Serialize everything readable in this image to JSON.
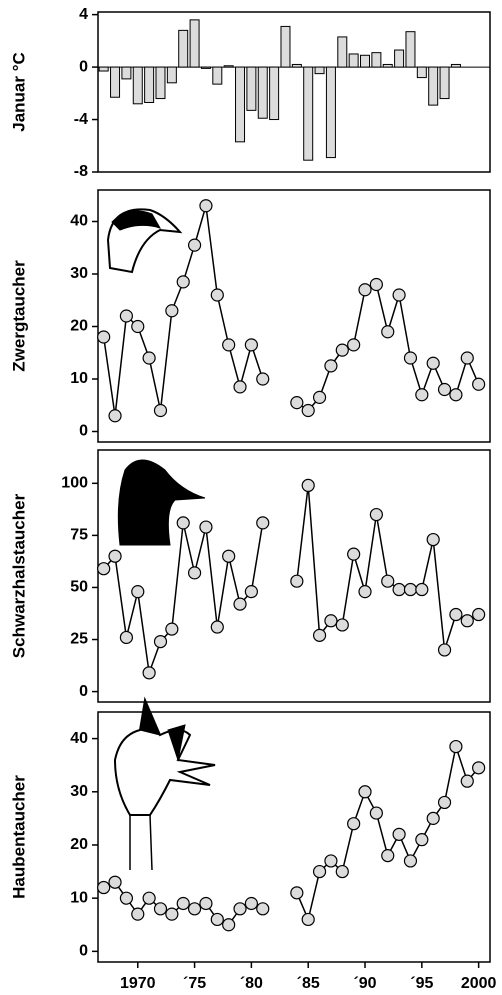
{
  "chart_data": [
    {
      "type": "bar",
      "y_label": "Januar °C",
      "x": [
        1967,
        1968,
        1969,
        1970,
        1971,
        1972,
        1973,
        1974,
        1975,
        1976,
        1977,
        1978,
        1979,
        1980,
        1981,
        1982,
        1983,
        1984,
        1985,
        1986,
        1987,
        1988,
        1989,
        1990,
        1991,
        1992,
        1993,
        1994,
        1995,
        1996,
        1997,
        1998
      ],
      "values": [
        -0.3,
        -2.3,
        -0.9,
        -2.8,
        -2.7,
        -2.4,
        -1.2,
        2.8,
        3.6,
        -0.1,
        -1.3,
        0.1,
        -5.7,
        -3.3,
        -3.9,
        -4.0,
        3.1,
        0.2,
        -7.1,
        -0.5,
        -6.9,
        2.3,
        1.0,
        0.9,
        1.1,
        0.2,
        1.3,
        2.7,
        -0.8,
        -2.9,
        -2.4,
        0.2
      ],
      "color": "#dcdcdc",
      "xlim": [
        1966.5,
        2001
      ],
      "ylim": [
        -8,
        4.2
      ],
      "yticks": [
        -8,
        -4,
        0,
        4
      ]
    },
    {
      "type": "line",
      "y_label": "Zwergtaucher",
      "x": [
        1967,
        1968,
        1969,
        1970,
        1971,
        1972,
        1973,
        1974,
        1975,
        1976,
        1977,
        1978,
        1979,
        1980,
        1981,
        1982,
        1983,
        1984,
        1985,
        1986,
        1987,
        1988,
        1989,
        1990,
        1991,
        1992,
        1993,
        1994,
        1995,
        1996,
        1997,
        1998,
        1999,
        2000
      ],
      "values": [
        18,
        3,
        22,
        20,
        14,
        4,
        23,
        28.5,
        35.5,
        43,
        26,
        16.5,
        8.5,
        16.5,
        10,
        null,
        null,
        5.5,
        4,
        6.5,
        12.5,
        15.5,
        16.5,
        27,
        28,
        19,
        26,
        14,
        7,
        13,
        8,
        7,
        14,
        9
      ],
      "color": "#dcdcdc",
      "xlim": [
        1966.5,
        2001
      ],
      "ylim": [
        -2,
        46
      ],
      "yticks": [
        0,
        10,
        20,
        30,
        40
      ]
    },
    {
      "type": "line",
      "y_label": "Schwarzhalstaucher",
      "x": [
        1967,
        1968,
        1969,
        1970,
        1971,
        1972,
        1973,
        1974,
        1975,
        1976,
        1977,
        1978,
        1979,
        1980,
        1981,
        1982,
        1983,
        1984,
        1985,
        1986,
        1987,
        1988,
        1989,
        1990,
        1991,
        1992,
        1993,
        1994,
        1995,
        1996,
        1997,
        1998,
        1999,
        2000
      ],
      "values": [
        59,
        65,
        26,
        48,
        9,
        24,
        30,
        81,
        57,
        79,
        31,
        65,
        42,
        48,
        81,
        null,
        null,
        53,
        99,
        27,
        34,
        32,
        66,
        48,
        85,
        53,
        49,
        49,
        49,
        73,
        20,
        37,
        34,
        37
      ],
      "color": "#dcdcdc",
      "xlim": [
        1966.5,
        2001
      ],
      "ylim": [
        -5,
        116
      ],
      "yticks": [
        0,
        25,
        50,
        75,
        100
      ]
    },
    {
      "type": "line",
      "y_label": "Haubentaucher",
      "x": [
        1967,
        1968,
        1969,
        1970,
        1971,
        1972,
        1973,
        1974,
        1975,
        1976,
        1977,
        1978,
        1979,
        1980,
        1981,
        1982,
        1983,
        1984,
        1985,
        1986,
        1987,
        1988,
        1989,
        1990,
        1991,
        1992,
        1993,
        1994,
        1995,
        1996,
        1997,
        1998,
        1999,
        2000
      ],
      "values": [
        12,
        13,
        10,
        7,
        10,
        8,
        7,
        9,
        8,
        9,
        6,
        5,
        8,
        9,
        8,
        null,
        null,
        11,
        6,
        15,
        17,
        15,
        24,
        30,
        26,
        18,
        22,
        17,
        21,
        25,
        28,
        38.5,
        32,
        34.5
      ],
      "color": "#dcdcdc",
      "xlim": [
        1966.5,
        2001
      ],
      "ylim": [
        -2,
        45
      ],
      "yticks": [
        0,
        10,
        20,
        30,
        40
      ],
      "xticks": [
        1970,
        {
          "value": 1975,
          "label": "´75"
        },
        {
          "value": 1980,
          "label": "´80"
        },
        {
          "value": 1985,
          "label": "´85"
        },
        {
          "value": 1990,
          "label": "´90"
        },
        {
          "value": 1995,
          "label": "´95"
        },
        2000
      ]
    }
  ]
}
